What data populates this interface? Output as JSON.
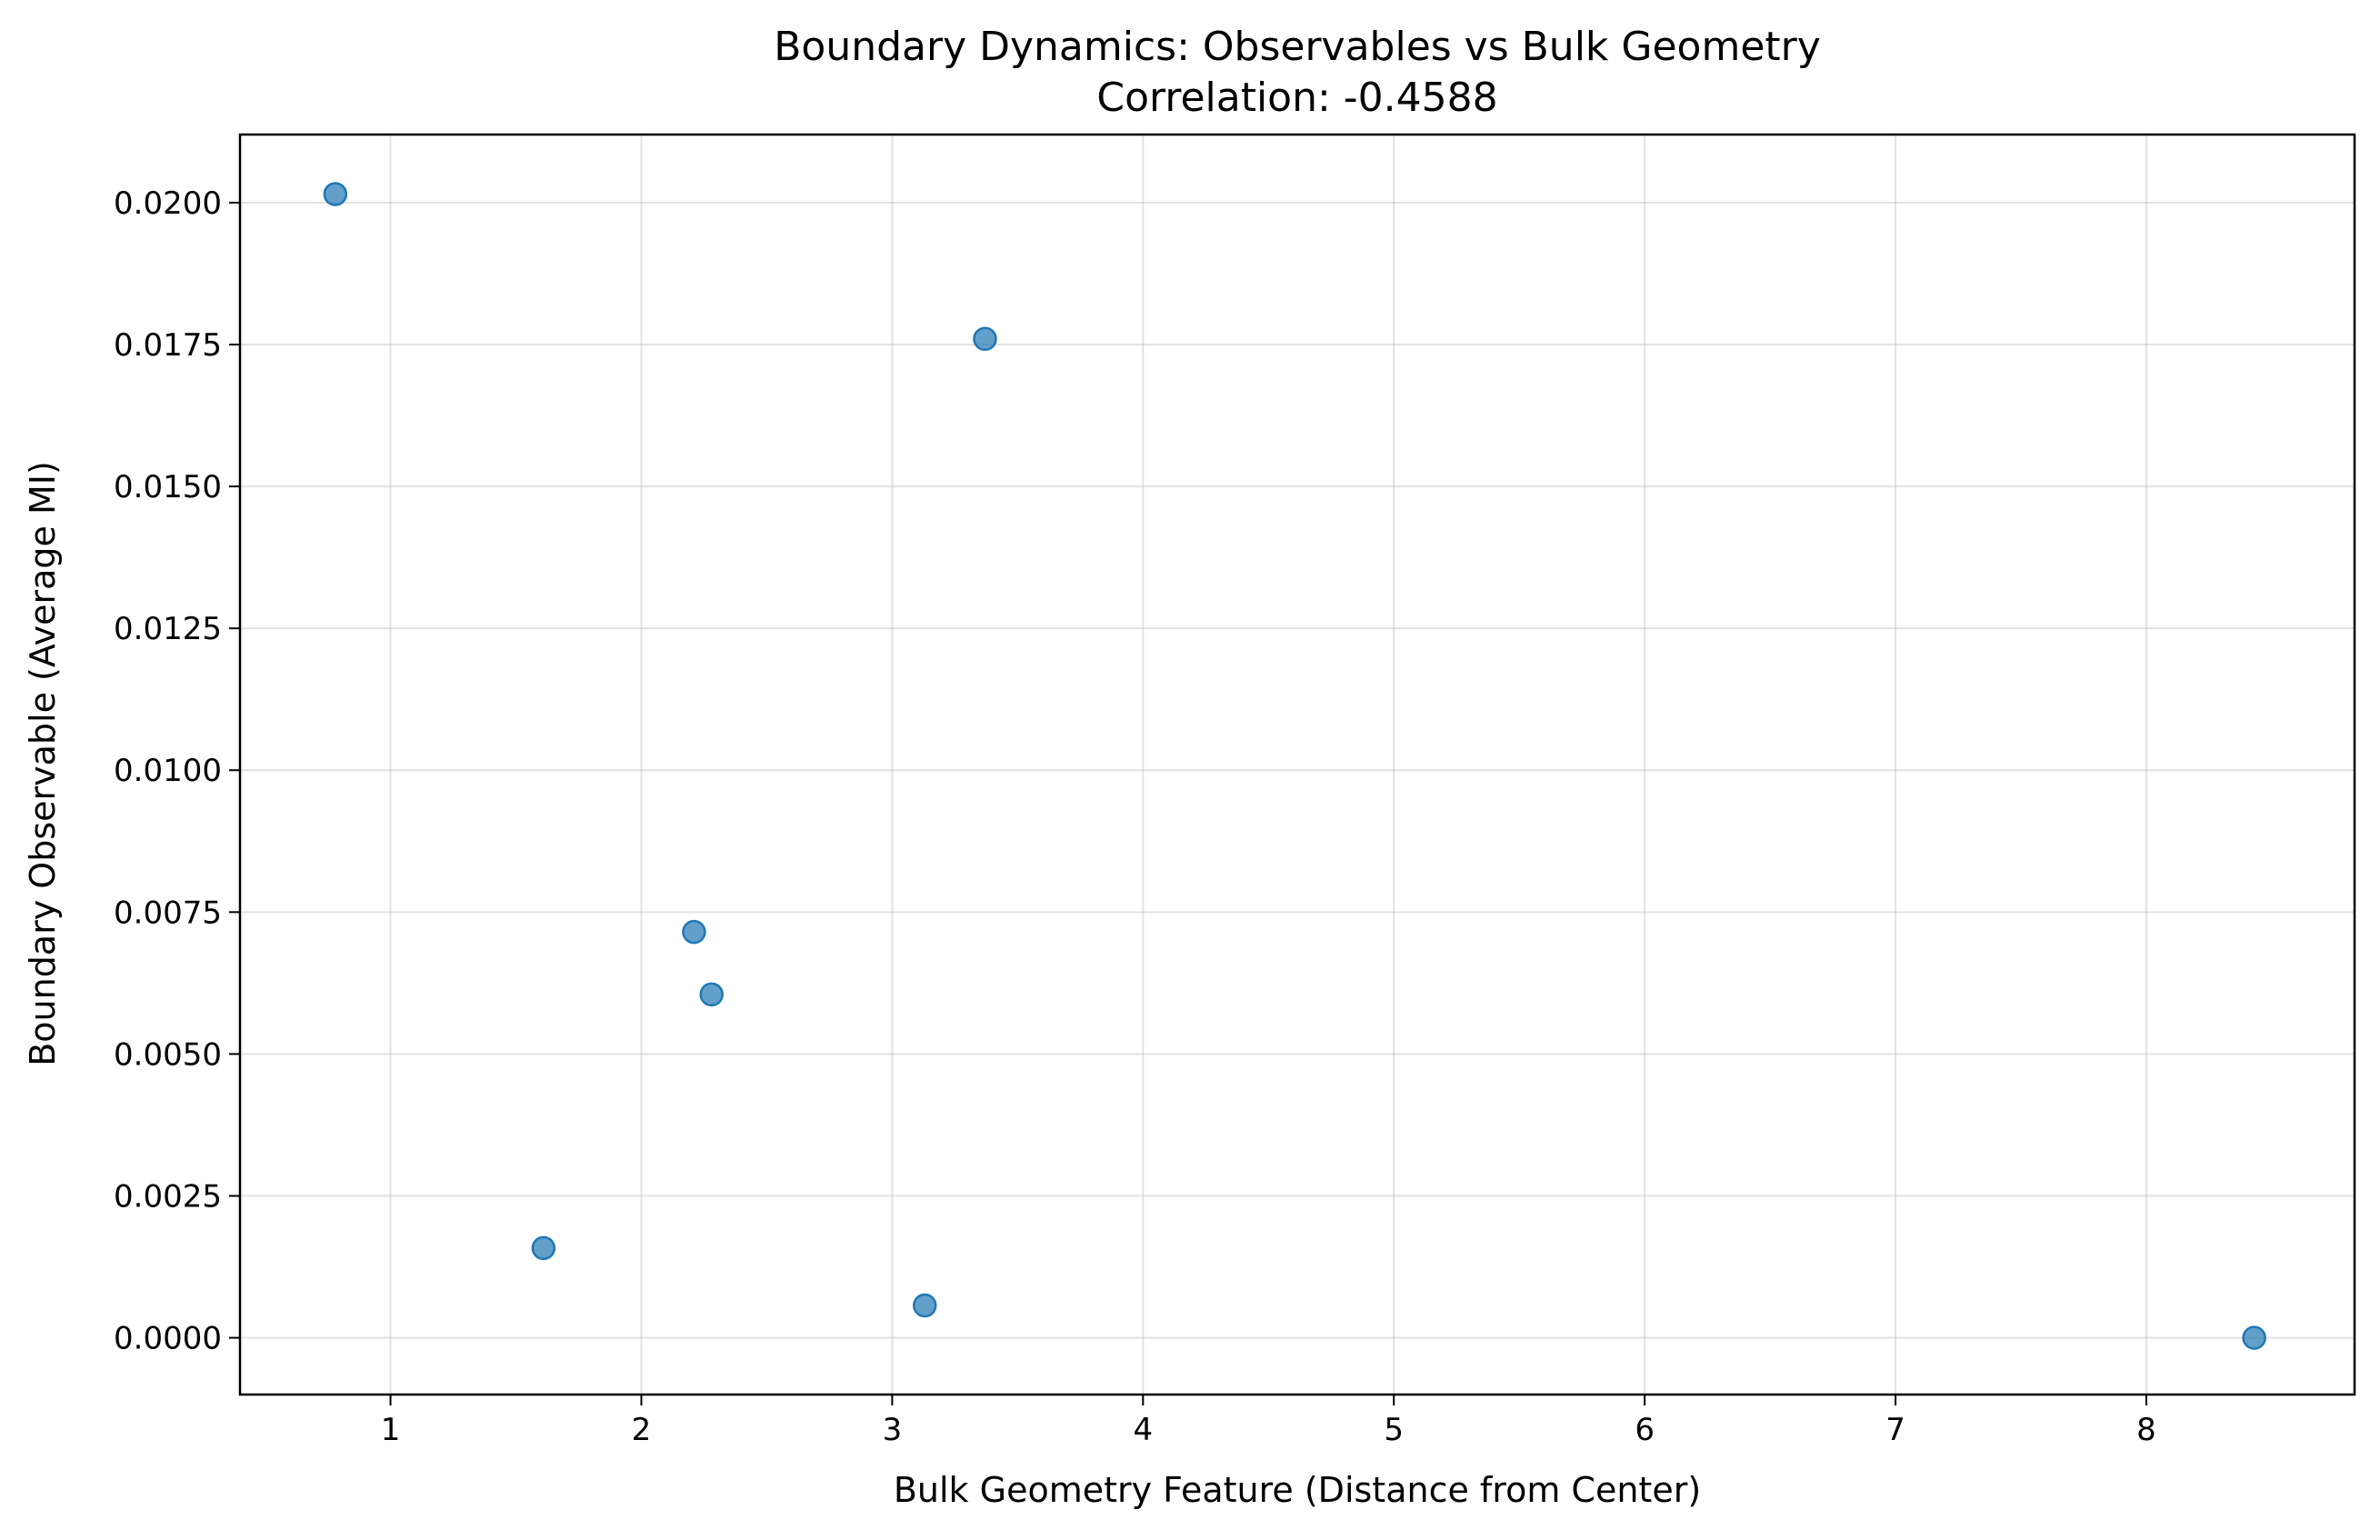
{
  "chart_data": {
    "type": "scatter",
    "title": "Boundary Dynamics: Observables vs Bulk Geometry",
    "subtitle": "Correlation: -0.4588",
    "xlabel": "Bulk Geometry Feature (Distance from Center)",
    "ylabel": "Boundary Observable (Average MI)",
    "xlim": [
      0.4,
      8.83
    ],
    "ylim": [
      -0.001,
      0.0212
    ],
    "xticks": [
      1,
      2,
      3,
      4,
      5,
      6,
      7,
      8
    ],
    "xtick_labels": [
      "1",
      "2",
      "3",
      "4",
      "5",
      "6",
      "7",
      "8"
    ],
    "yticks": [
      0.0,
      0.0025,
      0.005,
      0.0075,
      0.01,
      0.0125,
      0.015,
      0.0175,
      0.02
    ],
    "ytick_labels": [
      "0.0000",
      "0.0025",
      "0.0050",
      "0.0075",
      "0.0100",
      "0.0125",
      "0.0150",
      "0.0175",
      "0.0200"
    ],
    "grid": true,
    "marker_color": "#1f77b4",
    "marker_alpha": 0.7,
    "x": [
      0.78,
      1.61,
      2.21,
      2.28,
      3.13,
      3.37,
      8.43
    ],
    "y": [
      0.02015,
      0.00158,
      0.00715,
      0.00605,
      0.00057,
      0.0176,
      0.0
    ]
  }
}
